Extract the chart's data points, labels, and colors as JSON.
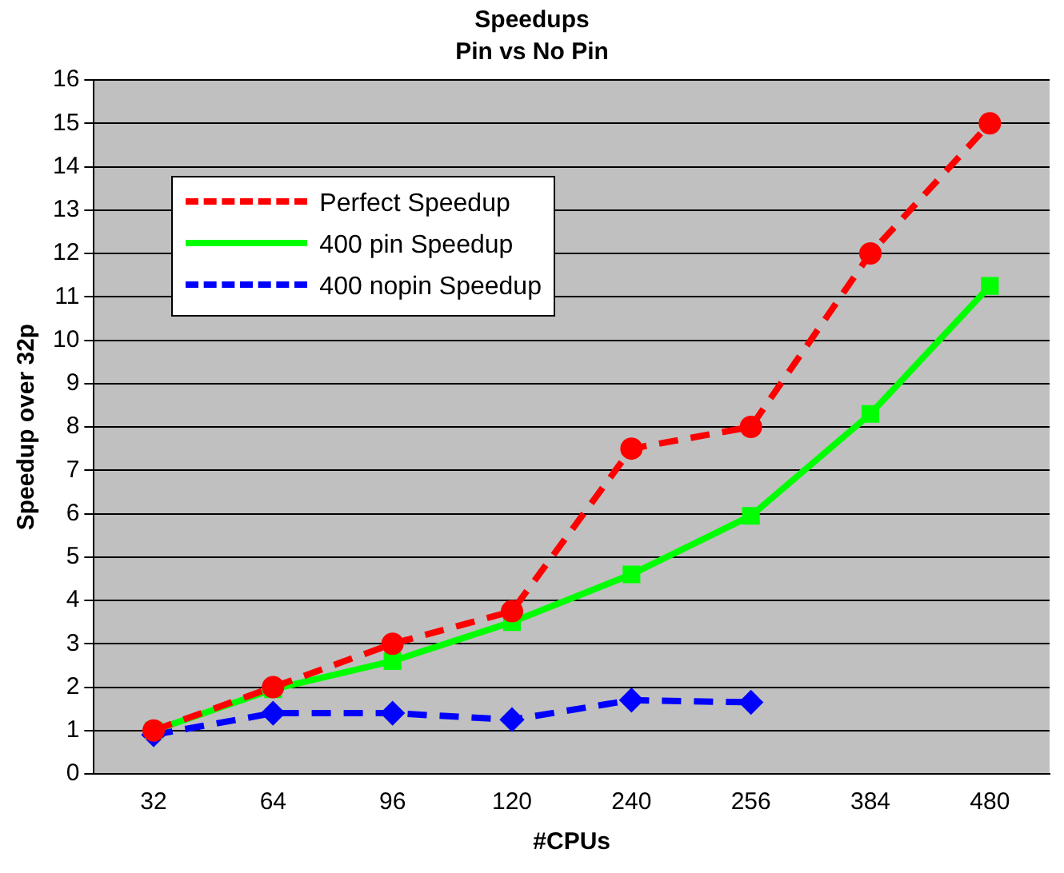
{
  "chart_data": {
    "type": "line",
    "title": "Speedups",
    "subtitle": "Pin vs No Pin",
    "xlabel": "#CPUs",
    "ylabel": "Speedup over 32p",
    "categories": [
      "32",
      "64",
      "96",
      "120",
      "240",
      "256",
      "384",
      "480"
    ],
    "series": [
      {
        "name": "Perfect Speedup",
        "color": "#ff0000",
        "marker": "circle",
        "line_style": "dashed",
        "values": [
          1,
          2,
          3,
          3.75,
          7.5,
          8,
          12,
          15
        ]
      },
      {
        "name": "400 pin Speedup",
        "color": "#00ff00",
        "marker": "square",
        "line_style": "solid",
        "values": [
          1,
          1.95,
          2.6,
          3.5,
          4.6,
          5.95,
          8.3,
          11.25
        ]
      },
      {
        "name": "400 nopin Speedup",
        "color": "#0000ff",
        "marker": "diamond",
        "line_style": "dashed",
        "values": [
          0.9,
          1.4,
          1.4,
          1.25,
          1.7,
          1.65,
          null,
          null
        ]
      }
    ],
    "ylim": [
      0,
      16
    ],
    "yticks": [
      0,
      1,
      2,
      3,
      4,
      5,
      6,
      7,
      8,
      9,
      10,
      11,
      12,
      13,
      14,
      15,
      16
    ],
    "grid": "y",
    "legend": "top left"
  }
}
